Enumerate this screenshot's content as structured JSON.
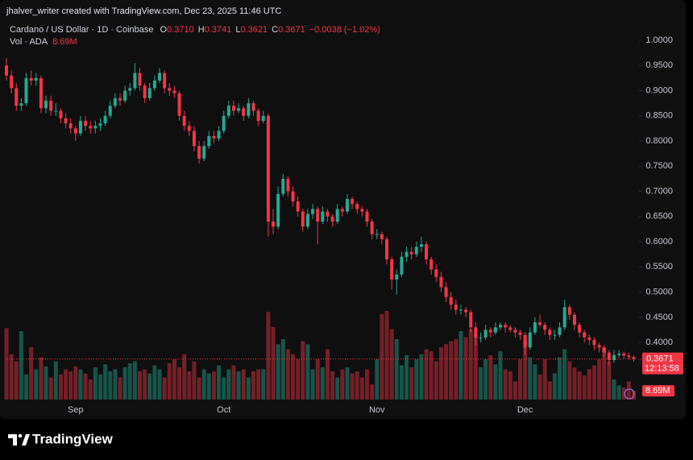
{
  "chart_data": {
    "type": "candlestick",
    "attribution": "jhalver_writer created with TradingView.com, Dec 23, 2025 11:46 UTC",
    "symbol": "Cardano / US Dollar · 1D · Coinbase",
    "ohlc_legend": [
      {
        "key": "O",
        "value": "0.3710"
      },
      {
        "key": "H",
        "value": "0.3741"
      },
      {
        "key": "L",
        "value": "0.3621"
      },
      {
        "key": "C",
        "value": "0.3671"
      }
    ],
    "change": "−0.0038 (−1.02%)",
    "volume_title": "Vol · ADA",
    "volume_value_label": "8.69M",
    "countdown": "12:13:58",
    "brand": "TradingView",
    "up_color": "#22ab94",
    "down_color": "#f23645",
    "grid": false,
    "ylim": [
      0.285,
      1.04
    ],
    "yticks": [
      {
        "value": 0.4,
        "label": "0.4000"
      },
      {
        "value": 0.45,
        "label": "0.4500"
      },
      {
        "value": 0.5,
        "label": "0.5000"
      },
      {
        "value": 0.55,
        "label": "0.5500"
      },
      {
        "value": 0.6,
        "label": "0.6000"
      },
      {
        "value": 0.65,
        "label": "0.6500"
      },
      {
        "value": 0.7,
        "label": "0.7000"
      },
      {
        "value": 0.75,
        "label": "0.7500"
      },
      {
        "value": 0.8,
        "label": "0.8000"
      },
      {
        "value": 0.85,
        "label": "0.8500"
      },
      {
        "value": 0.9,
        "label": "0.9000"
      },
      {
        "value": 0.95,
        "label": "0.9500"
      },
      {
        "value": 1.0,
        "label": "1.0000"
      }
    ],
    "volume_ylim": [
      0,
      100000000
    ],
    "categories": [
      null,
      null,
      null,
      null,
      null,
      null,
      null,
      null,
      null,
      null,
      null,
      null,
      null,
      null,
      "Sep",
      null,
      null,
      null,
      null,
      null,
      null,
      null,
      null,
      null,
      null,
      null,
      null,
      null,
      null,
      null,
      null,
      null,
      null,
      null,
      null,
      null,
      null,
      null,
      null,
      null,
      null,
      null,
      null,
      null,
      "Oct",
      null,
      null,
      null,
      null,
      null,
      null,
      null,
      null,
      null,
      null,
      null,
      null,
      null,
      null,
      null,
      null,
      null,
      null,
      null,
      null,
      null,
      null,
      null,
      null,
      null,
      null,
      null,
      null,
      null,
      null,
      "Nov",
      null,
      null,
      null,
      null,
      null,
      null,
      null,
      null,
      null,
      null,
      null,
      null,
      null,
      null,
      null,
      null,
      null,
      null,
      null,
      null,
      null,
      null,
      null,
      null,
      null,
      null,
      null,
      null,
      null,
      "Dec",
      null,
      null,
      null,
      null,
      null,
      null,
      null,
      null,
      null,
      null,
      null,
      null,
      null,
      null,
      null,
      null,
      null,
      null,
      null,
      null,
      null,
      null
    ],
    "open": [
      0.95,
      0.93,
      0.905,
      0.87,
      0.875,
      0.925,
      0.92,
      0.925,
      0.865,
      0.88,
      0.86,
      0.86,
      0.845,
      0.835,
      0.825,
      0.815,
      0.84,
      0.83,
      0.825,
      0.83,
      0.835,
      0.85,
      0.87,
      0.885,
      0.88,
      0.9,
      0.905,
      0.935,
      0.91,
      0.885,
      0.905,
      0.92,
      0.935,
      0.905,
      0.9,
      0.895,
      0.85,
      0.83,
      0.82,
      0.79,
      0.765,
      0.79,
      0.81,
      0.805,
      0.82,
      0.85,
      0.87,
      0.86,
      0.865,
      0.85,
      0.875,
      0.86,
      0.84,
      0.85,
      0.64,
      0.63,
      0.695,
      0.725,
      0.7,
      0.68,
      0.66,
      0.63,
      0.655,
      0.665,
      0.64,
      0.66,
      0.65,
      0.64,
      0.665,
      0.66,
      0.685,
      0.675,
      0.665,
      0.66,
      0.64,
      0.615,
      0.615,
      0.605,
      0.565,
      0.525,
      0.535,
      0.57,
      0.58,
      0.575,
      0.59,
      0.595,
      0.565,
      0.545,
      0.53,
      0.51,
      0.49,
      0.475,
      0.465,
      0.465,
      0.46,
      0.43,
      0.41,
      0.41,
      0.425,
      0.42,
      0.43,
      0.435,
      0.43,
      0.425,
      0.42,
      0.415,
      0.39,
      0.42,
      0.44,
      0.435,
      0.425,
      0.415,
      0.415,
      0.43,
      0.47,
      0.455,
      0.435,
      0.42,
      0.41,
      0.405,
      0.395,
      0.39,
      0.38,
      0.365,
      0.375,
      0.378,
      0.374,
      0.371
    ],
    "high": [
      0.965,
      0.94,
      0.915,
      0.885,
      0.935,
      0.94,
      0.935,
      0.93,
      0.89,
      0.89,
      0.875,
      0.865,
      0.855,
      0.845,
      0.83,
      0.85,
      0.85,
      0.84,
      0.84,
      0.845,
      0.86,
      0.88,
      0.895,
      0.895,
      0.91,
      0.915,
      0.955,
      0.945,
      0.915,
      0.915,
      0.93,
      0.945,
      0.94,
      0.915,
      0.91,
      0.9,
      0.86,
      0.84,
      0.83,
      0.8,
      0.8,
      0.82,
      0.82,
      0.83,
      0.86,
      0.88,
      0.88,
      0.875,
      0.87,
      0.885,
      0.88,
      0.865,
      0.86,
      0.855,
      0.665,
      0.71,
      0.735,
      0.73,
      0.71,
      0.69,
      0.665,
      0.665,
      0.675,
      0.67,
      0.67,
      0.665,
      0.655,
      0.675,
      0.67,
      0.695,
      0.69,
      0.68,
      0.67,
      0.665,
      0.645,
      0.625,
      0.62,
      0.61,
      0.57,
      0.545,
      0.58,
      0.59,
      0.59,
      0.6,
      0.61,
      0.6,
      0.57,
      0.555,
      0.54,
      0.52,
      0.5,
      0.485,
      0.475,
      0.47,
      0.465,
      0.44,
      0.42,
      0.435,
      0.43,
      0.44,
      0.44,
      0.44,
      0.435,
      0.43,
      0.425,
      0.42,
      0.43,
      0.45,
      0.455,
      0.44,
      0.43,
      0.425,
      0.44,
      0.485,
      0.475,
      0.46,
      0.44,
      0.425,
      0.415,
      0.41,
      0.4,
      0.395,
      0.385,
      0.385,
      0.385,
      0.382,
      0.38,
      0.3741
    ],
    "low": [
      0.92,
      0.895,
      0.86,
      0.86,
      0.87,
      0.91,
      0.91,
      0.855,
      0.855,
      0.85,
      0.85,
      0.835,
      0.825,
      0.815,
      0.8,
      0.81,
      0.82,
      0.815,
      0.815,
      0.82,
      0.83,
      0.845,
      0.865,
      0.87,
      0.875,
      0.89,
      0.9,
      0.9,
      0.875,
      0.88,
      0.9,
      0.915,
      0.895,
      0.89,
      0.885,
      0.84,
      0.82,
      0.81,
      0.78,
      0.755,
      0.76,
      0.785,
      0.795,
      0.8,
      0.815,
      0.845,
      0.85,
      0.855,
      0.84,
      0.845,
      0.85,
      0.83,
      0.835,
      0.61,
      0.615,
      0.625,
      0.69,
      0.69,
      0.67,
      0.65,
      0.62,
      0.625,
      0.645,
      0.595,
      0.635,
      0.64,
      0.63,
      0.635,
      0.65,
      0.655,
      0.665,
      0.655,
      0.65,
      0.63,
      0.605,
      0.605,
      0.595,
      0.555,
      0.505,
      0.495,
      0.53,
      0.56,
      0.565,
      0.57,
      0.58,
      0.555,
      0.535,
      0.52,
      0.5,
      0.48,
      0.465,
      0.455,
      0.455,
      0.45,
      0.42,
      0.395,
      0.4,
      0.405,
      0.41,
      0.415,
      0.425,
      0.42,
      0.42,
      0.41,
      0.405,
      0.375,
      0.385,
      0.415,
      0.43,
      0.415,
      0.405,
      0.405,
      0.41,
      0.425,
      0.445,
      0.425,
      0.41,
      0.4,
      0.395,
      0.385,
      0.38,
      0.37,
      0.355,
      0.36,
      0.37,
      0.368,
      0.366,
      0.3621
    ],
    "close": [
      0.93,
      0.905,
      0.87,
      0.875,
      0.925,
      0.92,
      0.925,
      0.865,
      0.88,
      0.86,
      0.86,
      0.845,
      0.835,
      0.825,
      0.815,
      0.84,
      0.83,
      0.825,
      0.83,
      0.835,
      0.85,
      0.87,
      0.885,
      0.88,
      0.9,
      0.905,
      0.935,
      0.91,
      0.885,
      0.905,
      0.92,
      0.935,
      0.905,
      0.9,
      0.895,
      0.85,
      0.83,
      0.82,
      0.79,
      0.765,
      0.79,
      0.81,
      0.805,
      0.82,
      0.85,
      0.87,
      0.86,
      0.865,
      0.85,
      0.875,
      0.86,
      0.84,
      0.85,
      0.64,
      0.63,
      0.695,
      0.725,
      0.7,
      0.68,
      0.66,
      0.63,
      0.655,
      0.665,
      0.64,
      0.66,
      0.65,
      0.64,
      0.665,
      0.66,
      0.685,
      0.675,
      0.665,
      0.66,
      0.64,
      0.615,
      0.615,
      0.605,
      0.565,
      0.525,
      0.535,
      0.57,
      0.58,
      0.575,
      0.59,
      0.595,
      0.565,
      0.545,
      0.53,
      0.51,
      0.49,
      0.475,
      0.465,
      0.465,
      0.46,
      0.43,
      0.41,
      0.41,
      0.425,
      0.42,
      0.43,
      0.435,
      0.43,
      0.425,
      0.42,
      0.415,
      0.39,
      0.42,
      0.44,
      0.435,
      0.425,
      0.415,
      0.415,
      0.43,
      0.47,
      0.455,
      0.435,
      0.42,
      0.41,
      0.405,
      0.395,
      0.39,
      0.38,
      0.365,
      0.375,
      0.378,
      0.374,
      0.371,
      0.3671
    ],
    "volume": [
      71000000,
      45000000,
      38000000,
      68000000,
      25000000,
      52000000,
      30000000,
      42000000,
      33000000,
      22000000,
      38000000,
      25000000,
      30000000,
      28000000,
      33000000,
      30000000,
      26000000,
      20000000,
      32000000,
      25000000,
      35000000,
      28000000,
      30000000,
      22000000,
      32000000,
      36000000,
      38000000,
      28000000,
      30000000,
      26000000,
      34000000,
      30000000,
      22000000,
      36000000,
      40000000,
      32000000,
      45000000,
      28000000,
      38000000,
      22000000,
      30000000,
      26000000,
      28000000,
      34000000,
      22000000,
      30000000,
      34000000,
      28000000,
      30000000,
      22000000,
      28000000,
      30000000,
      30000000,
      87000000,
      72000000,
      55000000,
      60000000,
      50000000,
      45000000,
      40000000,
      58000000,
      55000000,
      30000000,
      40000000,
      32000000,
      50000000,
      28000000,
      22000000,
      30000000,
      32000000,
      26000000,
      28000000,
      22000000,
      30000000,
      15000000,
      40000000,
      85000000,
      88000000,
      70000000,
      60000000,
      34000000,
      44000000,
      32000000,
      40000000,
      45000000,
      50000000,
      48000000,
      38000000,
      52000000,
      55000000,
      58000000,
      60000000,
      68000000,
      62000000,
      70000000,
      65000000,
      32000000,
      40000000,
      44000000,
      35000000,
      48000000,
      30000000,
      28000000,
      18000000,
      40000000,
      58000000,
      42000000,
      35000000,
      25000000,
      40000000,
      18000000,
      26000000,
      42000000,
      50000000,
      38000000,
      32000000,
      28000000,
      24000000,
      30000000,
      34000000,
      40000000,
      52000000,
      38000000,
      20000000,
      14000000,
      12000000,
      18000000,
      8690000
    ]
  }
}
